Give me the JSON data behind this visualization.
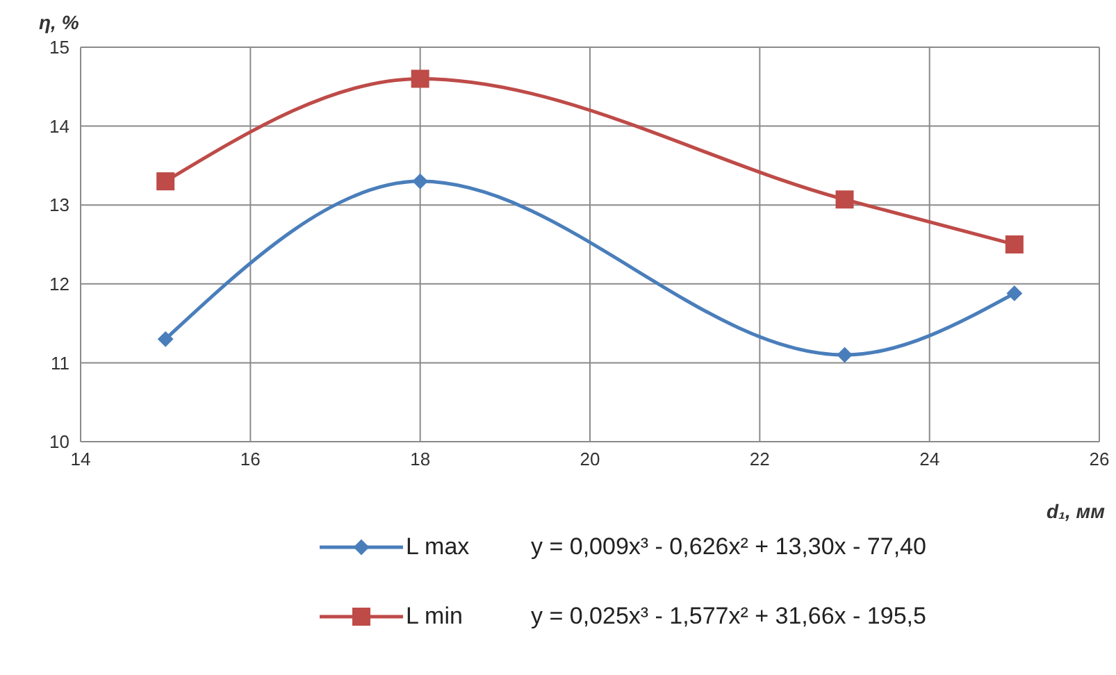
{
  "chart_data": {
    "type": "line",
    "xlabel": "d₁, мм",
    "ylabel": "η, %",
    "x": [
      15,
      18,
      23,
      25
    ],
    "series": [
      {
        "name": "L max",
        "color": "#4a7ebb",
        "marker": "diamond",
        "values": [
          11.3,
          13.3,
          11.1,
          11.88
        ]
      },
      {
        "name": "L min",
        "color": "#be4b48",
        "marker": "square",
        "values": [
          13.3,
          14.6,
          13.07,
          12.5
        ]
      }
    ],
    "annotations": [
      "y = 0,009x³ - 0,626x² + 13,30x - 77,40",
      "y = 0,025x³ - 1,577x² + 31,66x - 195,5"
    ],
    "xlim": [
      14,
      26
    ],
    "xticks": [
      14,
      16,
      18,
      20,
      22,
      24,
      26
    ],
    "ylim": [
      10,
      15
    ],
    "yticks": [
      10,
      11,
      12,
      13,
      14,
      15
    ],
    "grid": true,
    "legend": "bottom"
  }
}
